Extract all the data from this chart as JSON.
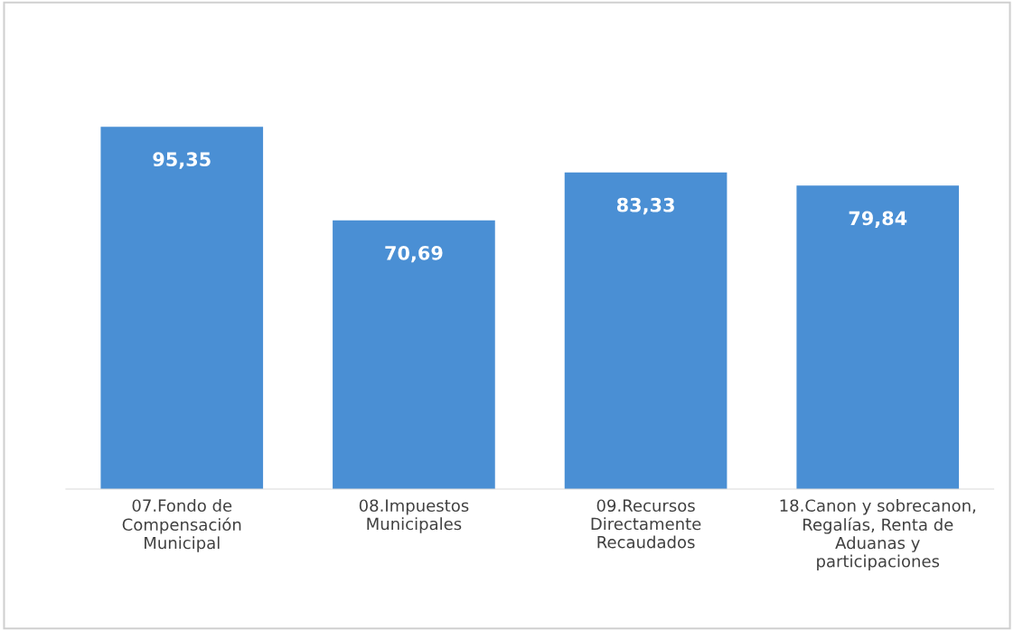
{
  "chart_data": {
    "type": "bar",
    "categories": [
      "07.Fondo de\nCompensación\nMunicipal",
      "08.Impuestos\nMunicipales",
      "09.Recursos\nDirectamente\nRecaudados",
      "18.Canon y sobrecanon,\nRegalías, Renta de\nAduanas y\nparticipaciones"
    ],
    "values": [
      95.35,
      70.69,
      83.33,
      79.84
    ],
    "value_labels": [
      "95,35",
      "70,69",
      "83,33",
      "79,84"
    ],
    "color": "#4a8fd4",
    "grid": false,
    "legend": false
  }
}
